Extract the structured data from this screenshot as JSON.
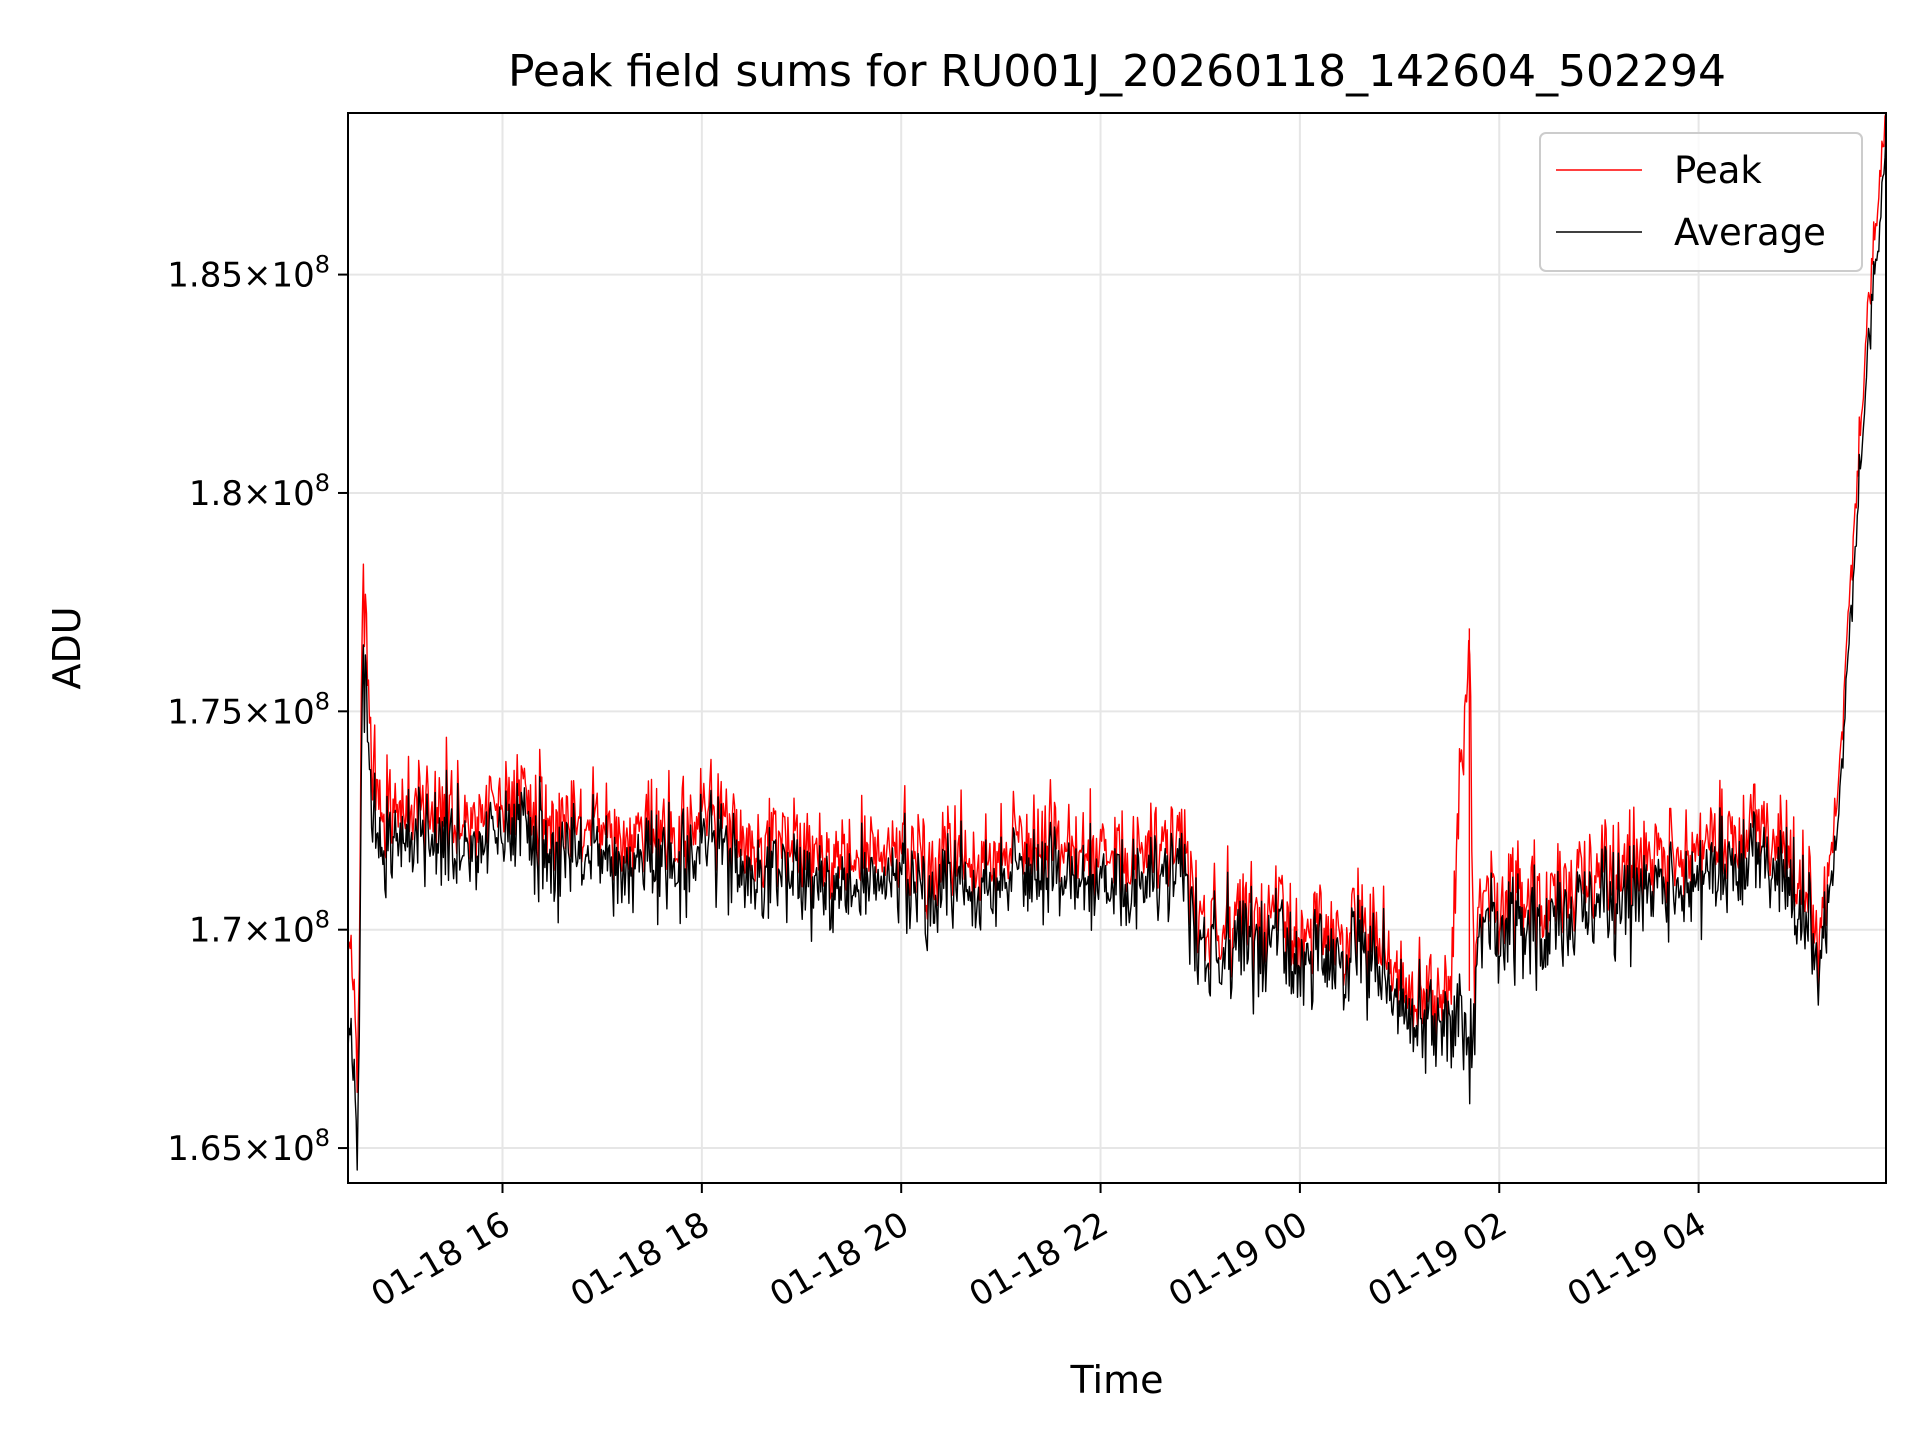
{
  "chart_data": {
    "type": "line",
    "title": "Peak field sums for RU001J_20260118_142604_502294",
    "xlabel": "Time",
    "ylabel": "ADU",
    "x_unit": "hours since 2026-01-18 00:00",
    "xlim": [
      14.45,
      29.88
    ],
    "ylim": [
      164.2,
      188.7
    ],
    "y_scale_note": "values in units of 1e6 ADU",
    "grid": true,
    "legend_position": "top-right",
    "x_ticks": [
      {
        "value": 16,
        "label": "01-18 16"
      },
      {
        "value": 18,
        "label": "01-18 18"
      },
      {
        "value": 20,
        "label": "01-18 20"
      },
      {
        "value": 22,
        "label": "01-18 22"
      },
      {
        "value": 24,
        "label": "01-19 00"
      },
      {
        "value": 26,
        "label": "01-19 02"
      },
      {
        "value": 28,
        "label": "01-19 04"
      }
    ],
    "y_ticks": [
      {
        "value": 165,
        "mantissa": "1.65",
        "exponent": "8"
      },
      {
        "value": 170,
        "mantissa": "1.7",
        "exponent": "8"
      },
      {
        "value": 175,
        "mantissa": "1.75",
        "exponent": "8"
      },
      {
        "value": 180,
        "mantissa": "1.8",
        "exponent": "8"
      },
      {
        "value": 185,
        "mantissa": "1.85",
        "exponent": "8"
      }
    ],
    "series": [
      {
        "name": "Average",
        "color": "#000000",
        "x": [
          14.45,
          14.5,
          14.55,
          14.6,
          14.65,
          14.75,
          14.85,
          15.0,
          15.2,
          15.4,
          15.6,
          15.8,
          16.0,
          16.2,
          16.4,
          16.6,
          16.8,
          17.0,
          17.2,
          17.4,
          17.6,
          17.8,
          18.0,
          18.2,
          18.4,
          18.6,
          18.8,
          19.0,
          19.2,
          19.4,
          19.6,
          19.8,
          20.0,
          20.2,
          20.4,
          20.6,
          20.8,
          21.0,
          21.2,
          21.4,
          21.6,
          21.8,
          22.0,
          22.2,
          22.4,
          22.6,
          22.85,
          22.95,
          23.2,
          23.4,
          23.6,
          23.8,
          24.0,
          24.2,
          24.4,
          24.6,
          24.8,
          25.0,
          25.1,
          25.3,
          25.5,
          25.7,
          25.75,
          25.8,
          26.0,
          26.2,
          26.4,
          26.6,
          26.8,
          27.0,
          27.2,
          27.4,
          27.6,
          27.8,
          28.0,
          28.2,
          28.4,
          28.6,
          28.8,
          29.0,
          29.2,
          29.35,
          29.45,
          29.55,
          29.65,
          29.75,
          29.82,
          29.88
        ],
        "values": [
          168.5,
          167.0,
          165.2,
          176.5,
          174.0,
          172.0,
          171.8,
          172.0,
          172.2,
          172.0,
          172.1,
          171.9,
          172.2,
          172.3,
          171.8,
          171.7,
          171.6,
          171.7,
          171.5,
          171.8,
          171.6,
          171.5,
          171.7,
          171.6,
          171.4,
          171.3,
          171.2,
          171.3,
          171.1,
          171.0,
          171.2,
          171.0,
          171.1,
          170.9,
          171.0,
          171.1,
          170.9,
          171.2,
          171.3,
          171.1,
          171.4,
          171.2,
          171.1,
          171.0,
          171.1,
          171.2,
          171.4,
          169.7,
          169.6,
          169.8,
          169.5,
          169.7,
          169.3,
          169.6,
          169.4,
          169.5,
          169.2,
          168.6,
          168.0,
          167.8,
          167.9,
          167.8,
          168.0,
          170.1,
          170.0,
          169.8,
          170.1,
          170.3,
          170.2,
          170.6,
          170.9,
          170.8,
          171.0,
          170.9,
          171.1,
          171.3,
          171.2,
          171.4,
          171.5,
          170.9,
          169.0,
          171.2,
          174.0,
          178.0,
          181.5,
          184.5,
          186.0,
          188.0
        ]
      },
      {
        "name": "Peak",
        "color": "#ff0000",
        "x": [
          14.45,
          14.5,
          14.55,
          14.6,
          14.65,
          14.75,
          14.85,
          15.0,
          15.2,
          15.4,
          15.6,
          15.8,
          16.0,
          16.2,
          16.4,
          16.6,
          16.8,
          17.0,
          17.2,
          17.4,
          17.6,
          17.8,
          18.0,
          18.2,
          18.4,
          18.6,
          18.8,
          19.0,
          19.2,
          19.4,
          19.6,
          19.8,
          20.0,
          20.2,
          20.4,
          20.6,
          20.8,
          21.0,
          21.2,
          21.4,
          21.6,
          21.8,
          22.0,
          22.2,
          22.4,
          22.6,
          22.85,
          22.95,
          23.2,
          23.4,
          23.6,
          23.8,
          24.0,
          24.2,
          24.4,
          24.6,
          24.8,
          25.0,
          25.1,
          25.3,
          25.5,
          25.7,
          25.75,
          25.8,
          26.0,
          26.2,
          26.4,
          26.6,
          26.8,
          27.0,
          27.2,
          27.4,
          27.6,
          27.8,
          28.0,
          28.2,
          28.4,
          28.6,
          28.8,
          29.0,
          29.2,
          29.35,
          29.45,
          29.55,
          29.65,
          29.75,
          29.82,
          29.88
        ],
        "values": [
          170.5,
          168.8,
          166.8,
          178.4,
          175.2,
          173.0,
          172.6,
          172.7,
          172.9,
          172.7,
          172.8,
          172.6,
          172.9,
          173.0,
          172.5,
          172.4,
          172.3,
          172.4,
          172.2,
          172.5,
          172.3,
          172.2,
          172.4,
          172.3,
          172.1,
          172.0,
          171.9,
          172.0,
          171.8,
          171.7,
          171.9,
          171.7,
          171.8,
          171.6,
          171.7,
          171.8,
          171.6,
          171.9,
          172.0,
          171.8,
          172.1,
          171.9,
          171.8,
          171.7,
          171.8,
          171.9,
          172.1,
          170.3,
          170.2,
          170.4,
          170.1,
          170.3,
          169.9,
          170.2,
          170.0,
          170.1,
          169.8,
          169.2,
          168.6,
          168.4,
          168.5,
          176.9,
          168.6,
          170.8,
          170.7,
          170.5,
          170.8,
          171.0,
          170.9,
          171.3,
          171.6,
          171.5,
          171.7,
          171.6,
          171.8,
          172.0,
          171.9,
          172.1,
          172.2,
          171.6,
          169.6,
          171.9,
          174.8,
          178.9,
          182.4,
          185.4,
          187.0,
          188.7
        ]
      }
    ]
  }
}
